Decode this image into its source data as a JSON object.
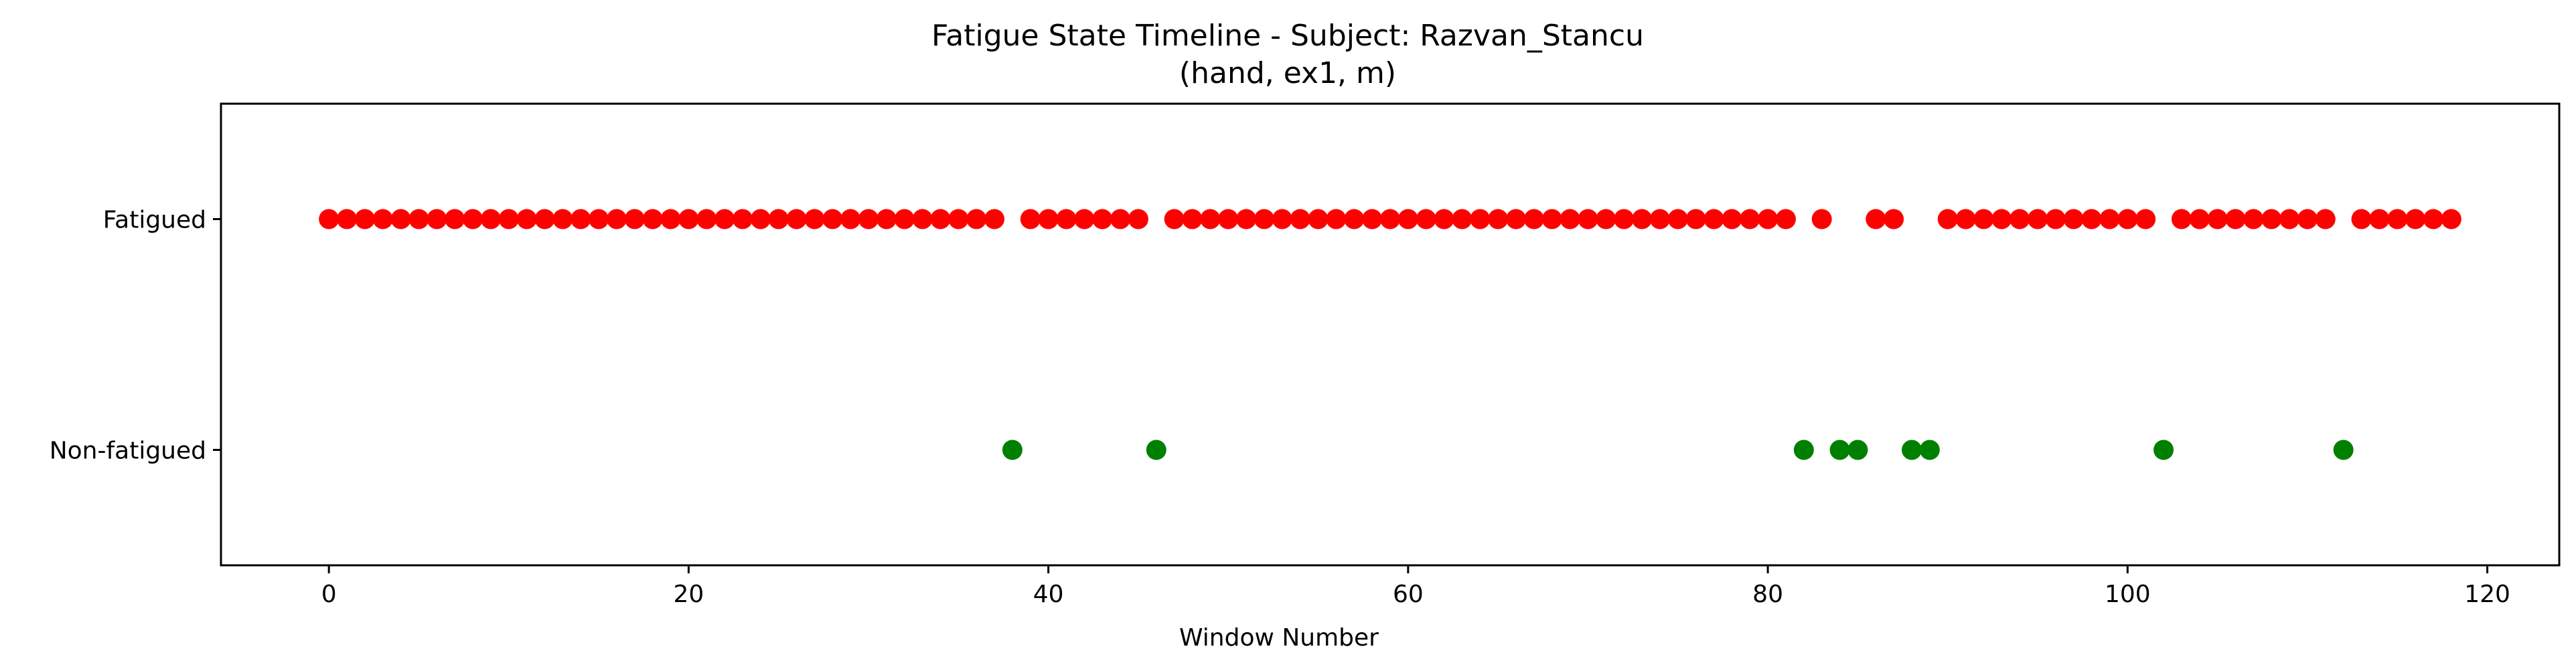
{
  "chart_data": {
    "type": "scatter",
    "title": "Fatigue State Timeline - Subject: Razvan_Stancu",
    "subtitle": "(hand, ex1, m)",
    "xlabel": "Window Number",
    "ylabel": "",
    "xlim": [
      -6,
      124
    ],
    "ylim": [
      -0.5,
      1.5
    ],
    "xticks": [
      0,
      20,
      40,
      60,
      80,
      100,
      120
    ],
    "yticks": [
      {
        "value": 1,
        "label": "Fatigued"
      },
      {
        "value": 0,
        "label": "Non-fatigued"
      }
    ],
    "grid": false,
    "colors": {
      "fatigued": "#ff0000",
      "non_fatigued": "#008000"
    },
    "series": [
      {
        "color": "#ff0000",
        "y": 1,
        "x": [
          0,
          1,
          2,
          3,
          4,
          5,
          6,
          7,
          8,
          9,
          10,
          11,
          12,
          13,
          14,
          15,
          16,
          17,
          18,
          19,
          20,
          21,
          22,
          23,
          24,
          25,
          26,
          27,
          28,
          29,
          30,
          31,
          32,
          33,
          34,
          35,
          36,
          37,
          39,
          40,
          41,
          42,
          43,
          44,
          45,
          47,
          48,
          49,
          50,
          51,
          52,
          53,
          54,
          55,
          56,
          57,
          58,
          59,
          60,
          61,
          62,
          63,
          64,
          65,
          66,
          67,
          68,
          69,
          70,
          71,
          72,
          73,
          74,
          75,
          76,
          77,
          78,
          79,
          80,
          81,
          83,
          86,
          87,
          90,
          91,
          92,
          93,
          94,
          95,
          96,
          97,
          98,
          99,
          100,
          101,
          103,
          104,
          105,
          106,
          107,
          108,
          109,
          110,
          111,
          113,
          114,
          115,
          116,
          117,
          118
        ]
      },
      {
        "color": "#008000",
        "y": 0,
        "x": [
          38,
          46,
          82,
          84,
          85,
          88,
          89,
          102,
          112
        ]
      }
    ]
  }
}
